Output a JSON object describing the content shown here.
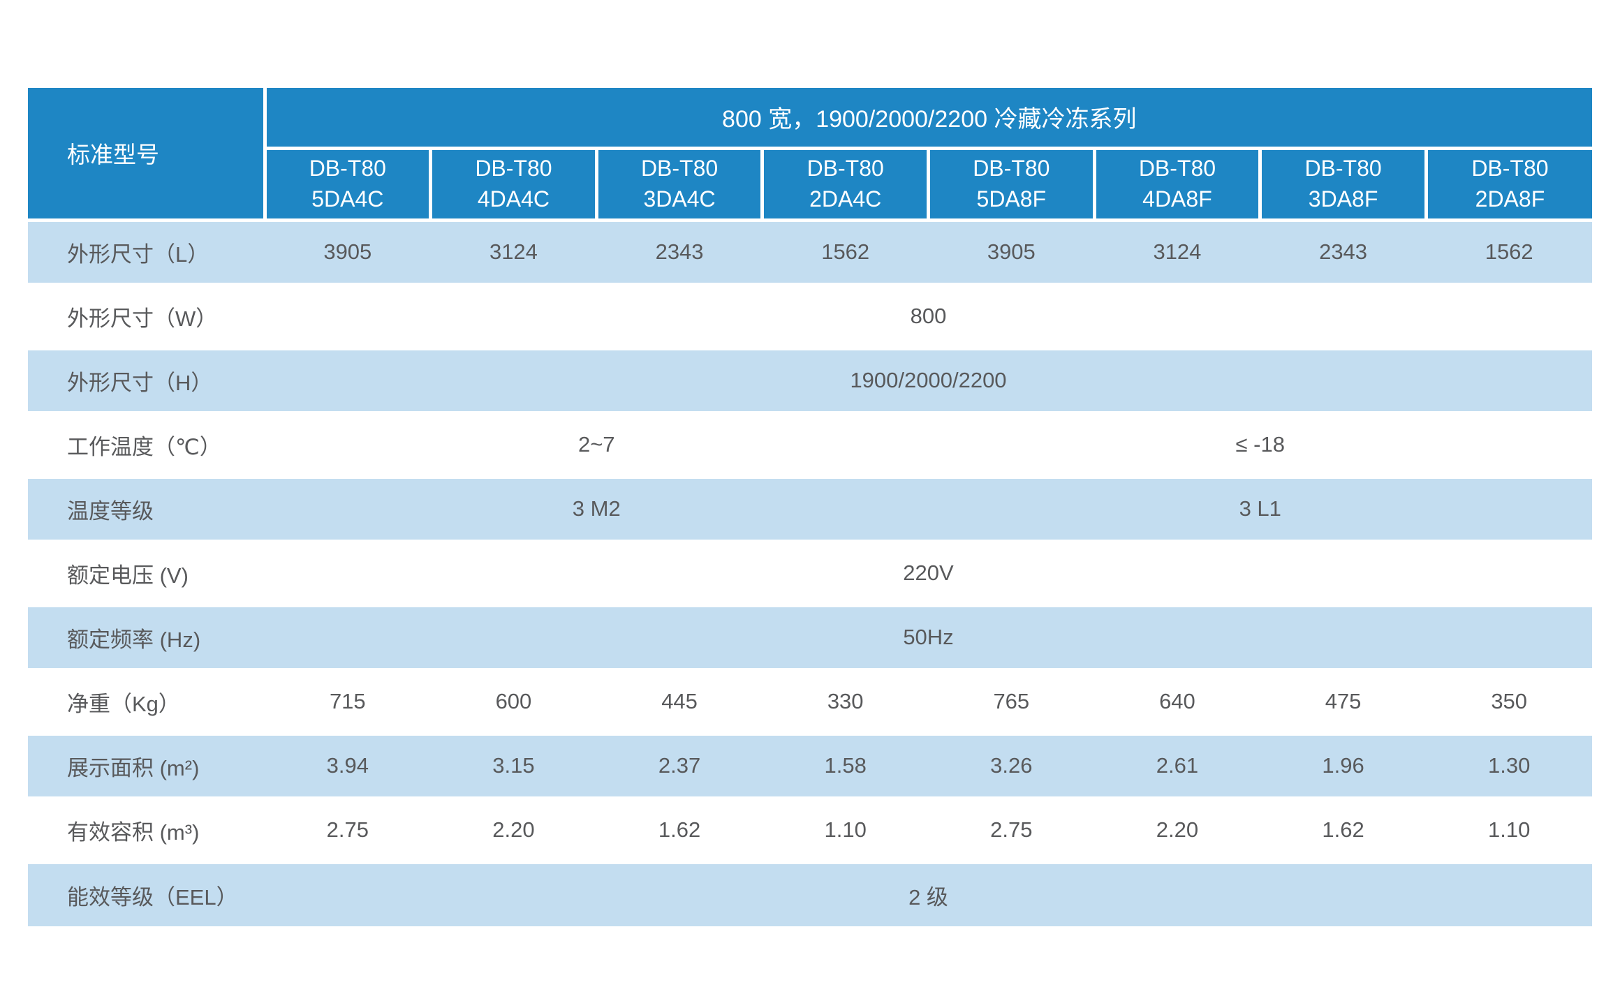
{
  "table": {
    "corner_label": "标准型号",
    "series_title": "800 宽，1900/2000/2200 冷藏冷冻系列",
    "models": [
      {
        "series": "DB-T80",
        "code": "5DA4C"
      },
      {
        "series": "DB-T80",
        "code": "4DA4C"
      },
      {
        "series": "DB-T80",
        "code": "3DA4C"
      },
      {
        "series": "DB-T80",
        "code": "2DA4C"
      },
      {
        "series": "DB-T80",
        "code": "5DA8F"
      },
      {
        "series": "DB-T80",
        "code": "4DA8F"
      },
      {
        "series": "DB-T80",
        "code": "3DA8F"
      },
      {
        "series": "DB-T80",
        "code": "2DA8F"
      }
    ],
    "rows": [
      {
        "label": "外形尺寸（L）",
        "span": "per-column",
        "values": [
          "3905",
          "3124",
          "2343",
          "1562",
          "3905",
          "3124",
          "2343",
          "1562"
        ]
      },
      {
        "label": "外形尺寸（W）",
        "span": "full",
        "values": [
          "800"
        ]
      },
      {
        "label": "外形尺寸（H）",
        "span": "full",
        "values": [
          "1900/2000/2200"
        ]
      },
      {
        "label": "工作温度（℃）",
        "span": "half",
        "values": [
          "2~7",
          "≤ -18"
        ]
      },
      {
        "label": "温度等级",
        "span": "half",
        "values": [
          "3 M2",
          "3 L1"
        ]
      },
      {
        "label": "额定电压 (V)",
        "span": "full",
        "values": [
          "220V"
        ]
      },
      {
        "label": "额定频率 (Hz)",
        "span": "full",
        "values": [
          "50Hz"
        ]
      },
      {
        "label": "净重（Kg）",
        "span": "per-column",
        "values": [
          "715",
          "600",
          "445",
          "330",
          "765",
          "640",
          "475",
          "350"
        ]
      },
      {
        "label": "展示面积 (m²)",
        "span": "per-column",
        "values": [
          "3.94",
          "3.15",
          "2.37",
          "1.58",
          "3.26",
          "2.61",
          "1.96",
          "1.30"
        ]
      },
      {
        "label": "有效容积 (m³)",
        "span": "per-column",
        "values": [
          "2.75",
          "2.20",
          "1.62",
          "1.10",
          "2.75",
          "2.20",
          "1.62",
          "1.10"
        ]
      },
      {
        "label": "能效等级（EEL）",
        "span": "full",
        "values": [
          "2 级"
        ]
      }
    ],
    "colors": {
      "header_blue": "#1e86c4",
      "band_blue": "#c3ddf0",
      "text_gray": "#58595b"
    }
  }
}
